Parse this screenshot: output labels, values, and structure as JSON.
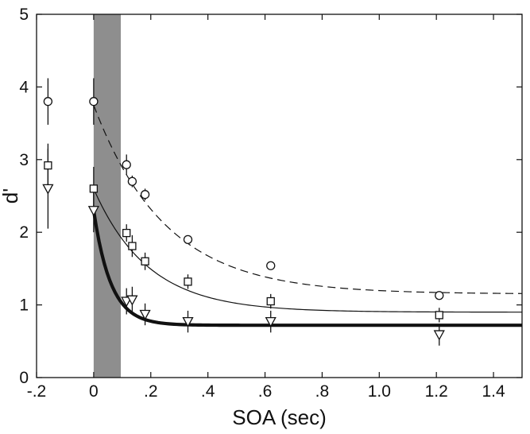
{
  "chart_data": {
    "type": "scatter",
    "xlabel": "SOA (sec)",
    "ylabel": "d'",
    "xlim": [
      -0.2,
      1.5
    ],
    "ylim": [
      0,
      5
    ],
    "x_ticks": [
      {
        "value": -0.2,
        "label": "-.2"
      },
      {
        "value": 0,
        "label": "0"
      },
      {
        "value": 0.2,
        "label": ".2"
      },
      {
        "value": 0.4,
        "label": ".4"
      },
      {
        "value": 0.6,
        "label": ".6"
      },
      {
        "value": 0.8,
        "label": ".8"
      },
      {
        "value": 1.0,
        "label": "1.0"
      },
      {
        "value": 1.2,
        "label": "1.2"
      },
      {
        "value": 1.4,
        "label": "1.4"
      }
    ],
    "y_ticks": [
      {
        "value": 0,
        "label": "0"
      },
      {
        "value": 1,
        "label": "1"
      },
      {
        "value": 2,
        "label": "2"
      },
      {
        "value": 3,
        "label": "3"
      },
      {
        "value": 4,
        "label": "4"
      },
      {
        "value": 5,
        "label": "5"
      }
    ],
    "shaded_region": {
      "x0": 0,
      "x1": 0.095
    },
    "grid": false,
    "legend": "none",
    "series": [
      {
        "marker": "circle",
        "line": "dashed",
        "line_weight": "thin",
        "points": [
          {
            "x": -0.16,
            "y": 3.8,
            "err": 0.32
          },
          {
            "x": 0.0,
            "y": 3.8,
            "err": 0.32
          },
          {
            "x": 0.115,
            "y": 2.93,
            "err": 0.14
          },
          {
            "x": 0.135,
            "y": 2.7,
            "err": 0.08
          },
          {
            "x": 0.18,
            "y": 2.52,
            "err": 0.08
          },
          {
            "x": 0.33,
            "y": 1.9,
            "err": 0.05
          },
          {
            "x": 0.62,
            "y": 1.54,
            "err": 0.05
          },
          {
            "x": 1.21,
            "y": 1.13,
            "err": 0.05
          }
        ],
        "fit": {
          "asymptote": 1.15,
          "amplitude": 2.6,
          "tau": 0.25,
          "x_start": 0.0,
          "x_end": 1.5
        }
      },
      {
        "marker": "square",
        "line": "solid",
        "line_weight": "thin",
        "points": [
          {
            "x": -0.16,
            "y": 2.92,
            "err": 0.3
          },
          {
            "x": 0.0,
            "y": 2.6,
            "err": 0.3
          },
          {
            "x": 0.115,
            "y": 1.99,
            "err": 0.12
          },
          {
            "x": 0.135,
            "y": 1.81,
            "err": 0.15
          },
          {
            "x": 0.18,
            "y": 1.6,
            "err": 0.12
          },
          {
            "x": 0.33,
            "y": 1.32,
            "err": 0.1
          },
          {
            "x": 0.62,
            "y": 1.05,
            "err": 0.1
          },
          {
            "x": 1.21,
            "y": 0.86,
            "err": 0.1
          }
        ],
        "fit": {
          "asymptote": 0.9,
          "amplitude": 1.7,
          "tau": 0.19,
          "x_start": 0.0,
          "x_end": 1.5
        }
      },
      {
        "marker": "triangle-down",
        "line": "solid",
        "line_weight": "thick",
        "points": [
          {
            "x": -0.16,
            "y": 2.6,
            "err": 0.55
          },
          {
            "x": 0.0,
            "y": 2.3,
            "err": 0.3
          },
          {
            "x": 0.115,
            "y": 1.05,
            "err": 0.18
          },
          {
            "x": 0.135,
            "y": 1.07,
            "err": 0.18
          },
          {
            "x": 0.18,
            "y": 0.87,
            "err": 0.15
          },
          {
            "x": 0.33,
            "y": 0.77,
            "err": 0.15
          },
          {
            "x": 0.62,
            "y": 0.77,
            "err": 0.15
          },
          {
            "x": 1.21,
            "y": 0.59,
            "err": 0.15
          }
        ],
        "fit": {
          "asymptote": 0.72,
          "amplitude": 1.58,
          "tau": 0.06,
          "x_start": 0.0,
          "x_end": 1.5
        }
      }
    ]
  },
  "colors": {
    "shading": "#8e8e8e",
    "ink": "#111111",
    "background": "#ffffff"
  }
}
